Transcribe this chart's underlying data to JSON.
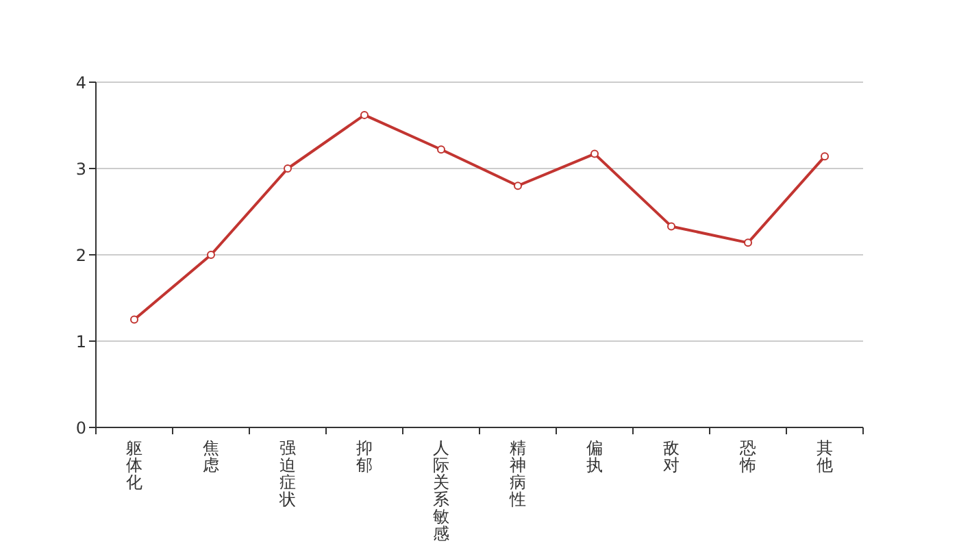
{
  "chart_data": {
    "type": "line",
    "categories": [
      "躯体化",
      "焦虑",
      "强迫症状",
      "抑郁",
      "人际关系敏感",
      "精神病性",
      "偏执",
      "敌对",
      "恐怖",
      "其他"
    ],
    "values": [
      1.25,
      2.0,
      3.0,
      3.62,
      3.22,
      2.8,
      3.17,
      2.33,
      2.14,
      3.14
    ],
    "color": "#c23531",
    "ylim": [
      0,
      4
    ],
    "yticks": [
      0,
      1,
      2,
      3,
      4
    ],
    "grid": "y",
    "marker": "circle",
    "line_style": "solid"
  }
}
